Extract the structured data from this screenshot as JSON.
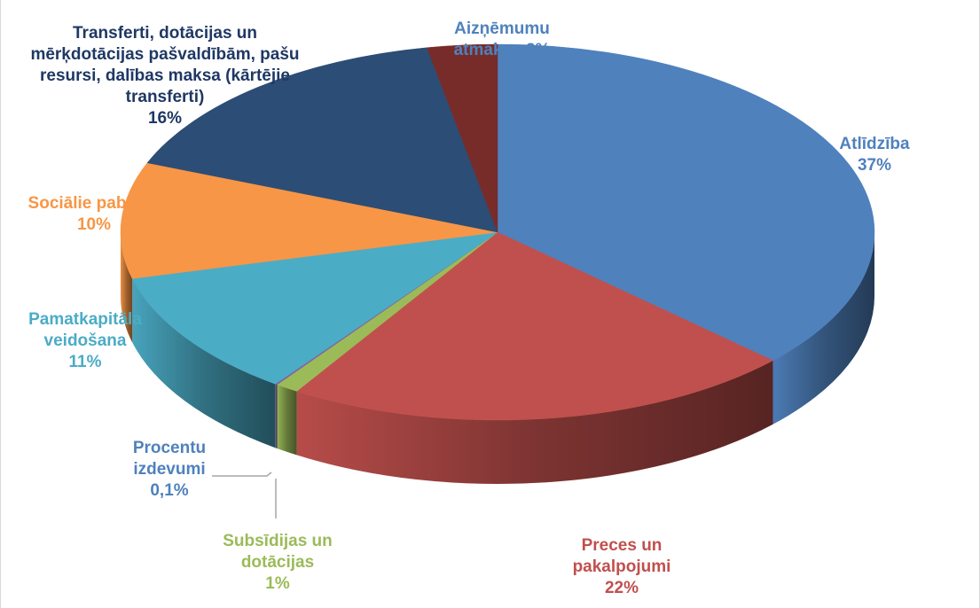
{
  "chart_data": {
    "type": "pie",
    "categories": [
      "Atlīdzība",
      "Preces un pakalpojumi",
      "Subsīdijas un dotācijas",
      "Procentu izdevumi",
      "Pamatkapitāla veidošana",
      "Sociālie pabalsti",
      "Transferti, dotācijas un mērķdotācijas pašvaldībām, pašu resursi, dalības maksa (kārtējie transferti)",
      "Aizņēmumu atmaksa"
    ],
    "values": [
      37,
      22,
      1,
      0.1,
      11,
      10,
      16,
      3
    ],
    "value_labels": [
      "37%",
      "22%",
      "1%",
      "0,1%",
      "11%",
      "10%",
      "16%",
      "3%"
    ],
    "colors": [
      "#4f81bd",
      "#c0504d",
      "#9bbb59",
      "#8064a2",
      "#4bacc6",
      "#f79646",
      "#2c4d75",
      "#772c2a"
    ]
  }
}
